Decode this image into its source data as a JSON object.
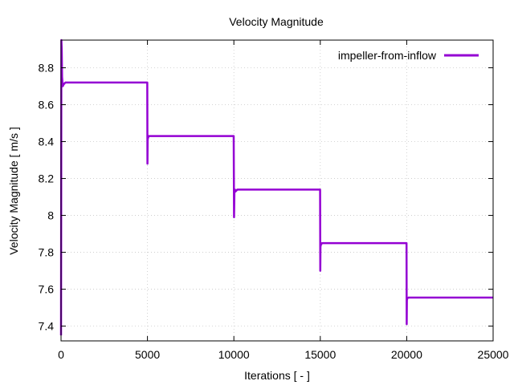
{
  "chart_data": {
    "type": "line",
    "title": "Velocity Magnitude",
    "xlabel": "Iterations [ - ]",
    "ylabel": "Velocity Magnitude [ m/s ]",
    "xlim": [
      0,
      25000
    ],
    "ylim": [
      7.32,
      8.95
    ],
    "xticks": [
      0,
      5000,
      10000,
      15000,
      20000,
      25000
    ],
    "xtick_labels": [
      "0",
      "5000",
      "10000",
      "15000",
      "20000",
      "25000"
    ],
    "yticks": [
      7.4,
      7.6,
      7.8,
      8.0,
      8.2,
      8.4,
      8.6,
      8.8
    ],
    "ytick_labels": [
      "7.4",
      "7.6",
      "7.8",
      "8",
      "8.2",
      "8.4",
      "8.6",
      "8.8"
    ],
    "grid": true,
    "legend_position": "top-right",
    "series": [
      {
        "name": "impeller-from-inflow",
        "color": "#9400d3",
        "x": [
          0,
          20,
          40,
          60,
          100,
          150,
          250,
          500,
          1000,
          2000,
          3000,
          4000,
          4990,
          5000,
          5010,
          5030,
          5080,
          5200,
          6000,
          7000,
          8000,
          9000,
          9990,
          10000,
          10010,
          10030,
          10060,
          10100,
          10200,
          11000,
          12000,
          13000,
          14000,
          14990,
          15000,
          15010,
          15030,
          15100,
          15200,
          16000,
          17000,
          18000,
          19000,
          19990,
          20000,
          20010,
          20030,
          20100,
          20200,
          21000,
          22000,
          23000,
          24000,
          25000
        ],
        "y": [
          7.35,
          8.95,
          8.9,
          8.75,
          8.7,
          8.71,
          8.72,
          8.72,
          8.72,
          8.72,
          8.72,
          8.72,
          8.72,
          8.28,
          8.41,
          8.42,
          8.43,
          8.43,
          8.43,
          8.43,
          8.43,
          8.43,
          8.43,
          8.21,
          7.99,
          8.12,
          8.14,
          8.13,
          8.14,
          8.14,
          8.14,
          8.14,
          8.14,
          8.14,
          7.7,
          7.83,
          7.84,
          7.85,
          7.85,
          7.85,
          7.85,
          7.85,
          7.85,
          7.85,
          7.41,
          7.54,
          7.55,
          7.555,
          7.555,
          7.555,
          7.555,
          7.555,
          7.555,
          7.555
        ]
      }
    ]
  }
}
